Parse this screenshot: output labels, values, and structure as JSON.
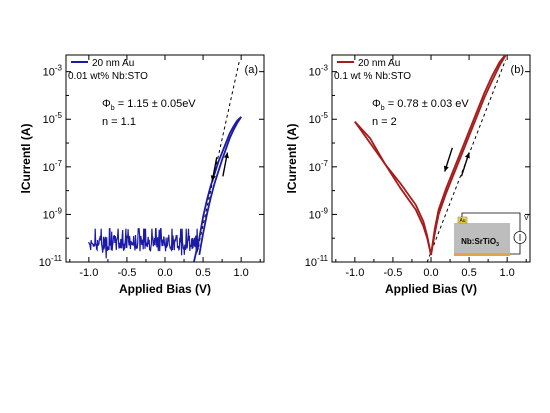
{
  "chart_data": [
    {
      "panel_id": "a",
      "type": "line",
      "xlabel": "Applied Bias (V)",
      "ylabel": "lCurrentl (A)",
      "xlim": [
        -1.3,
        1.3
      ],
      "ylog": true,
      "ylim_exp": [
        -11,
        -2.3
      ],
      "xticks": [
        -1.0,
        -0.5,
        0.0,
        0.5,
        1.0
      ],
      "xtick_labels": [
        "-1.0",
        "-0.5",
        "0.0",
        "0.5",
        "1.0"
      ],
      "ytick_exps": [
        -11,
        -9,
        -7,
        -5,
        -3
      ],
      "ytick_labels": [
        "10",
        "10",
        "10",
        "10",
        "10"
      ],
      "ytick_sups": [
        "-11",
        "-9",
        "-7",
        "-5",
        "-3"
      ],
      "panel_label": "(a)",
      "legend": [
        {
          "text": "20 nm Au",
          "color": "#1a1aa6"
        },
        {
          "text": "0.01 wt% Nb:STO",
          "color": ""
        }
      ],
      "annotations": {
        "phi_symbol": "Φ",
        "phi_sub": "b",
        "phi_value": " = 1.15 ± 0.05eV",
        "ideality": "n = 1.1"
      },
      "series": [
        {
          "name": "20 nm Au",
          "color": "#1a1aa6",
          "forward": {
            "x": [
              0.38,
              0.45,
              0.5,
              0.55,
              0.6,
              0.65,
              0.7,
              0.75,
              0.8,
              0.85,
              0.9,
              0.95,
              1.0
            ],
            "y_exp": [
              -11.0,
              -10.0,
              -9.1,
              -8.4,
              -7.8,
              -7.3,
              -6.8,
              -6.4,
              -6.0,
              -5.6,
              -5.3,
              -5.05,
              -4.9
            ]
          },
          "reverse": {
            "x": [
              1.0,
              0.95,
              0.9,
              0.85,
              0.8,
              0.75,
              0.7,
              0.65,
              0.6,
              0.55,
              0.5,
              0.45
            ],
            "y_exp": [
              -4.9,
              -5.15,
              -5.45,
              -5.8,
              -6.25,
              -6.7,
              -7.2,
              -7.7,
              -8.3,
              -9.0,
              -9.8,
              -10.7
            ]
          }
        }
      ],
      "noise_region": {
        "x_range": [
          -1.0,
          0.45
        ],
        "y_exp_range": [
          -10.9,
          -9.6
        ],
        "color": "#1a1aa6"
      },
      "fit_line": {
        "x": [
          0.42,
          0.98
        ],
        "y_exp": [
          -10.6,
          -2.5
        ],
        "style": "dashed"
      }
    },
    {
      "panel_id": "b",
      "type": "line",
      "xlabel": "Applied Bias (V)",
      "ylabel": "lCurrentl (A)",
      "xlim": [
        -1.3,
        1.3
      ],
      "ylog": true,
      "ylim_exp": [
        -11,
        -2.3
      ],
      "xticks": [
        -1.0,
        -0.5,
        0.0,
        0.5,
        1.0
      ],
      "xtick_labels": [
        "-1.0",
        "-0.5",
        "0.0",
        "0.5",
        "1.0"
      ],
      "ytick_exps": [
        -11,
        -9,
        -7,
        -5,
        -3
      ],
      "ytick_labels": [
        "10",
        "10",
        "10",
        "10",
        "10"
      ],
      "ytick_sups": [
        "-11",
        "-9",
        "-7",
        "-5",
        "-3"
      ],
      "panel_label": "(b)",
      "legend": [
        {
          "text": "20 nm Au",
          "color": "#a61c1c"
        },
        {
          "text": "0.1 wt % Nb:STO",
          "color": ""
        }
      ],
      "annotations": {
        "phi_symbol": "Φ",
        "phi_sub": "b",
        "phi_value": " = 0.78 ± 0.03 eV",
        "ideality": "n = 2"
      },
      "inset": {
        "top_label": "Au",
        "substrate_label": "Nb:SrTiO",
        "substrate_sub": "3",
        "v_label": "V"
      },
      "series": [
        {
          "name": "20 nm Au",
          "color": "#a61c1c",
          "forward": {
            "x": [
              -1.0,
              -0.8,
              -0.6,
              -0.4,
              -0.2,
              -0.1,
              -0.05,
              0.0,
              0.05,
              0.1,
              0.2,
              0.3,
              0.4,
              0.5,
              0.6,
              0.7,
              0.8,
              0.9,
              1.0
            ],
            "y_exp": [
              -5.1,
              -6.0,
              -6.9,
              -7.7,
              -8.6,
              -9.3,
              -9.9,
              -10.7,
              -9.6,
              -8.8,
              -7.9,
              -7.1,
              -6.3,
              -5.5,
              -4.7,
              -3.9,
              -3.2,
              -2.6,
              -2.2
            ]
          },
          "reverse": {
            "x": [
              1.0,
              0.9,
              0.8,
              0.7,
              0.6,
              0.5,
              0.4,
              0.3,
              0.2,
              0.1,
              0.05,
              0.0,
              -0.05,
              -0.1,
              -0.2,
              -0.4,
              -0.6,
              -0.8,
              -1.0
            ],
            "y_exp": [
              -2.2,
              -2.75,
              -3.4,
              -4.1,
              -4.9,
              -5.7,
              -6.5,
              -7.3,
              -8.1,
              -9.0,
              -9.8,
              -10.7,
              -10.0,
              -9.5,
              -8.8,
              -7.9,
              -6.9,
              -5.8,
              -5.1
            ]
          }
        }
      ],
      "fit_line": {
        "x": [
          -0.05,
          0.98
        ],
        "y_exp": [
          -11.0,
          -2.5
        ],
        "style": "dashed"
      }
    }
  ]
}
